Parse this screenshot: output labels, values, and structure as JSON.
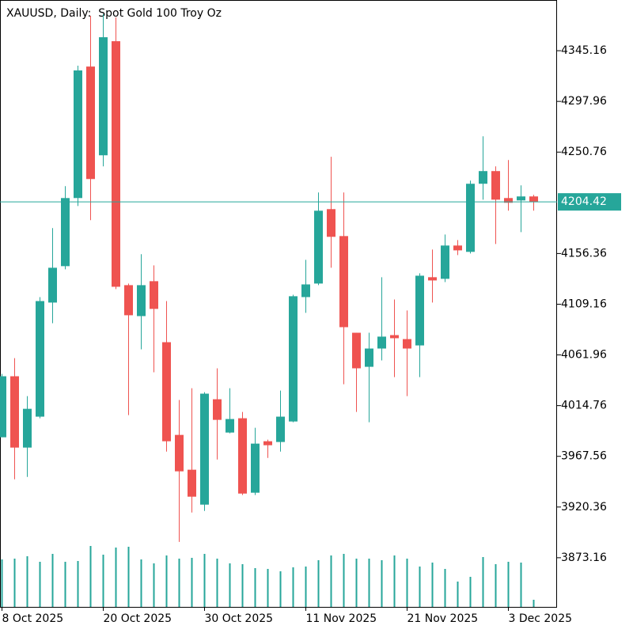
{
  "chart_data": {
    "type": "candlestick",
    "title": "XAUUSD, Daily:  Spot Gold 100 Troy Oz",
    "categories": [
      "8 Oct 2025",
      null,
      null,
      null,
      null,
      null,
      null,
      null,
      "20 Oct 2025",
      null,
      null,
      null,
      null,
      null,
      null,
      null,
      "30 Oct 2025",
      null,
      null,
      null,
      null,
      null,
      null,
      null,
      "11 Nov 2025",
      null,
      null,
      null,
      null,
      null,
      null,
      null,
      "21 Nov 2025",
      null,
      null,
      null,
      null,
      null,
      null,
      null,
      "3 Dec 2025",
      null,
      null
    ],
    "open": [
      3985.3,
      4042.1,
      3975.7,
      4004.5,
      4110.7,
      4144.6,
      4208.0,
      4330.4,
      4247.8,
      4354.0,
      4126.9,
      4098.1,
      4130.6,
      4073.8,
      3987.5,
      3955.1,
      3922.6,
      4020.7,
      3989.7,
      4003.0,
      3933.7,
      3981.6,
      3980.9,
      4000.0,
      4115.8,
      4128.4,
      4197.7,
      4172.6,
      4082.6,
      4050.9,
      4067.9,
      4080.4,
      4076.7,
      4070.8,
      4134.3,
      4132.8,
      4163.8,
      4157.9,
      4221.3,
      4233.1,
      4208.0,
      4205.8,
      4209.5
    ],
    "high": [
      4044.3,
      4059.0,
      4023.6,
      4115.8,
      4180.0,
      4219.1,
      4331.2,
      4377.6,
      4379.1,
      4376.2,
      4128.4,
      4155.7,
      4145.3,
      4112.1,
      4020.0,
      4031.0,
      4027.3,
      4049.5,
      4031.0,
      4008.9,
      3994.1,
      3983.1,
      4028.8,
      4118.0,
      4150.5,
      4213.2,
      4246.4,
      4213.2,
      4082.6,
      4082.6,
      4134.3,
      4113.6,
      4103.3,
      4138.0,
      4160.1,
      4174.1,
      4168.9,
      4224.2,
      4265.5,
      4237.5,
      4243.4,
      4219.8,
      4211.0
    ],
    "low": [
      3985.3,
      3946.2,
      3948.4,
      4003.0,
      4091.5,
      4141.6,
      4200.6,
      4187.4,
      4237.5,
      4123.2,
      4005.9,
      4067.2,
      4045.8,
      3972.0,
      3887.9,
      3915.2,
      3916.7,
      3964.6,
      3989.0,
      3931.5,
      3931.5,
      3966.1,
      3972.0,
      3999.3,
      4101.1,
      4126.9,
      4143.1,
      4034.7,
      4008.9,
      3999.3,
      4056.8,
      4041.3,
      4023.6,
      4041.3,
      4110.7,
      4129.8,
      4154.9,
      4156.4,
      4206.5,
      4165.2,
      4196.2,
      4176.3,
      4196.2
    ],
    "close": [
      4042.1,
      3975.7,
      4011.8,
      4112.1,
      4143.1,
      4208.0,
      4326.8,
      4225.7,
      4357.7,
      4125.4,
      4098.9,
      4126.9,
      4104.8,
      3981.6,
      3953.6,
      3930.0,
      4025.9,
      4001.5,
      4002.3,
      3932.9,
      3979.4,
      3977.9,
      4004.5,
      4116.6,
      4127.6,
      4196.2,
      4171.9,
      4087.8,
      4049.5,
      4067.9,
      4079.0,
      4077.5,
      4067.9,
      4135.7,
      4131.3,
      4163.8,
      4159.3,
      4221.3,
      4233.1,
      4206.5,
      4203.6,
      4209.5,
      4204.42
    ],
    "volume": [
      60,
      61,
      64,
      57,
      67,
      57,
      58,
      77,
      66,
      75,
      76,
      60,
      55,
      65,
      61,
      62,
      67,
      61,
      55,
      54,
      49,
      48,
      45,
      50,
      51,
      59,
      65,
      67,
      61,
      61,
      59,
      65,
      61,
      51,
      56,
      48,
      32,
      38,
      63,
      54,
      57,
      56,
      9
    ],
    "ylim": [
      3827.4,
      4392.36
    ],
    "yticks": [
      3873.16,
      3920.36,
      3967.56,
      4014.76,
      4061.96,
      4109.16,
      4156.36,
      4250.76,
      4297.96,
      4345.16
    ],
    "last_price": 4204.42,
    "up_color": "#26a69a",
    "down_color": "#ef5350"
  }
}
